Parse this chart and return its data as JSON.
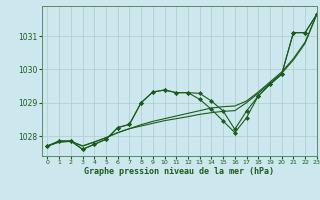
{
  "title": "Graphe pression niveau de la mer (hPa)",
  "background_color": "#cce8ee",
  "grid_color": "#aacccc",
  "line_color": "#1a5c1a",
  "xlim": [
    -0.5,
    23
  ],
  "ylim": [
    1027.4,
    1031.9
  ],
  "yticks": [
    1028,
    1029,
    1030,
    1031
  ],
  "xticks": [
    0,
    1,
    2,
    3,
    4,
    5,
    6,
    7,
    8,
    9,
    10,
    11,
    12,
    13,
    14,
    15,
    16,
    17,
    18,
    19,
    20,
    21,
    22,
    23
  ],
  "s1": [
    1027.7,
    1027.85,
    1027.85,
    1027.6,
    1027.75,
    1027.9,
    1028.25,
    1028.35,
    1029.0,
    1029.32,
    1029.38,
    1029.3,
    1029.3,
    1029.28,
    1029.05,
    1028.75,
    1028.2,
    1028.75,
    1029.2,
    1029.55,
    1029.85,
    1031.1,
    1031.1,
    1031.65
  ],
  "s2": [
    1027.7,
    1027.85,
    1027.85,
    1027.6,
    1027.75,
    1027.9,
    1028.25,
    1028.35,
    1029.0,
    1029.32,
    1029.38,
    1029.3,
    1029.3,
    1029.1,
    1028.8,
    1028.45,
    1028.1,
    1028.55,
    1029.2,
    1029.55,
    1029.85,
    1031.1,
    1031.1,
    1031.65
  ],
  "s3": [
    1027.7,
    1027.82,
    1027.84,
    1027.7,
    1027.82,
    1027.95,
    1028.1,
    1028.22,
    1028.34,
    1028.44,
    1028.52,
    1028.6,
    1028.68,
    1028.76,
    1028.84,
    1028.88,
    1028.9,
    1029.05,
    1029.32,
    1029.62,
    1029.92,
    1030.32,
    1030.82,
    1031.65
  ],
  "s4": [
    1027.7,
    1027.82,
    1027.84,
    1027.7,
    1027.82,
    1027.95,
    1028.1,
    1028.22,
    1028.3,
    1028.38,
    1028.46,
    1028.52,
    1028.58,
    1028.65,
    1028.7,
    1028.74,
    1028.76,
    1029.0,
    1029.28,
    1029.58,
    1029.88,
    1030.28,
    1030.78,
    1031.65
  ]
}
